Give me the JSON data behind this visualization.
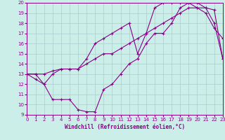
{
  "xlabel": "Windchill (Refroidissement éolien,°C)",
  "bg_color": "#cceee8",
  "line_color": "#880088",
  "grid_color": "#aacccc",
  "xlim": [
    0,
    23
  ],
  "ylim": [
    9,
    20
  ],
  "xticks": [
    0,
    1,
    2,
    3,
    4,
    5,
    6,
    7,
    8,
    9,
    10,
    11,
    12,
    13,
    14,
    15,
    16,
    17,
    18,
    19,
    20,
    21,
    22,
    23
  ],
  "yticks": [
    9,
    10,
    11,
    12,
    13,
    14,
    15,
    16,
    17,
    18,
    19,
    20
  ],
  "line1_x": [
    0,
    1,
    2,
    3,
    4,
    5,
    6,
    7,
    8,
    9,
    10,
    11,
    12,
    13,
    14,
    15,
    16,
    17,
    18,
    19,
    20,
    21,
    22,
    23
  ],
  "line1_y": [
    13,
    12.5,
    12,
    10.5,
    10.5,
    10.5,
    9.5,
    9.3,
    9.3,
    11.5,
    12,
    13,
    14,
    14.5,
    16,
    17,
    17,
    18,
    19.5,
    20,
    20,
    19.5,
    18,
    14.5
  ],
  "line2_x": [
    0,
    1,
    2,
    3,
    4,
    5,
    6,
    7,
    8,
    9,
    10,
    11,
    12,
    13,
    14,
    15,
    16,
    17,
    18,
    19,
    20,
    21,
    22,
    23
  ],
  "line2_y": [
    13,
    13,
    13,
    13.3,
    13.5,
    13.5,
    13.5,
    14,
    14.5,
    15,
    15,
    15.5,
    16,
    16.5,
    17,
    17.5,
    18,
    18.5,
    19,
    19.5,
    19.5,
    19.5,
    19.3,
    14.5
  ],
  "line3_x": [
    0,
    1,
    2,
    3,
    4,
    5,
    6,
    7,
    8,
    9,
    10,
    11,
    12,
    13,
    14,
    15,
    16,
    17,
    18,
    19,
    20,
    21,
    22,
    23
  ],
  "line3_y": [
    13,
    13,
    12,
    13,
    13.5,
    13.5,
    13.5,
    14.5,
    16,
    16.5,
    17,
    17.5,
    18,
    15,
    17,
    19.5,
    20,
    20,
    20,
    20,
    19.5,
    19,
    17.5,
    16.5
  ]
}
